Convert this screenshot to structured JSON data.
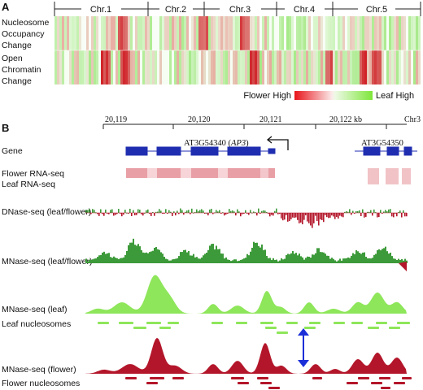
{
  "panel_a": {
    "letter": "A",
    "chromosomes": [
      "Chr.1",
      "Chr.2",
      "Chr.3",
      "Chr.4",
      "Chr.5"
    ],
    "row_labels": [
      [
        "Nucleosome",
        "Occupancy",
        "Change"
      ],
      [
        "Open",
        "Chromatin",
        "Change"
      ]
    ],
    "legend": {
      "low_label": "Flower High",
      "high_label": "Leaf High",
      "low_color": "#e8141a",
      "high_color": "#7ee63a"
    }
  },
  "panel_b": {
    "letter": "B",
    "axis": {
      "ticks": [
        "20,119",
        "20,120",
        "20,121",
        "20,122 kb"
      ],
      "chrom": "Chr3"
    },
    "gene_label": "Gene",
    "gene1": {
      "name": "AT3G54340 (",
      "italic": "AP3",
      "close": ")"
    },
    "gene2": {
      "name": "AT3G54350"
    },
    "tracks": {
      "flower_rna": "Flower RNA-seq",
      "leaf_rna": "Leaf RNA-seq",
      "dnase": "DNase-seq (leaf/flower)",
      "mnase_ratio": "MNase-seq (leaf/flower)",
      "mnase_leaf": "MNase-seq (leaf)",
      "leaf_nuc": "Leaf nucleosomes",
      "mnase_flower": "MNase-seq (flower)",
      "flower_nuc": "Flower nucleosomes"
    },
    "colors": {
      "gene": "#1f2eb0",
      "green_dark": "#3d9a3a",
      "green_light": "#8ee65a",
      "red_dark": "#b3162a",
      "arrow": "#1a2fd8"
    }
  }
}
